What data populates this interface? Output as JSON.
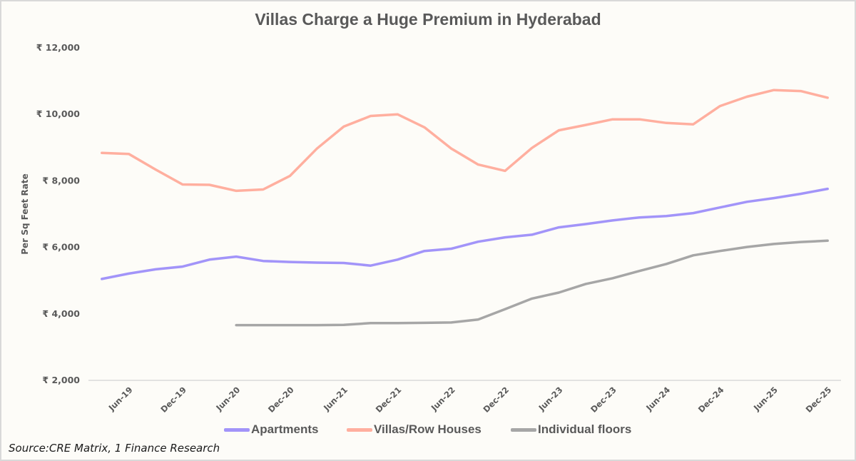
{
  "chart_data": {
    "type": "line",
    "title": "Villas Charge a Huge Premium in Hyderabad",
    "xlabel": "",
    "ylabel": "Per Sq Feet Rate",
    "ylim": [
      2000,
      12000
    ],
    "y_ticks": [
      2000,
      4000,
      6000,
      8000,
      10000,
      12000
    ],
    "y_tick_labels": [
      "₹ 2,000",
      "₹ 4,000",
      "₹ 6,000",
      "₹ 8,000",
      "₹ 10,000",
      "₹ 12,000"
    ],
    "grid": false,
    "legend_position": "bottom",
    "x": [
      "Mar-19",
      "Jun-19",
      "Sep-19",
      "Dec-19",
      "Mar-20",
      "Jun-20",
      "Sep-20",
      "Dec-20",
      "Mar-21",
      "Jun-21",
      "Sep-21",
      "Dec-21",
      "Mar-22",
      "Jun-22",
      "Sep-22",
      "Dec-22",
      "Mar-23",
      "Jun-23",
      "Sep-23",
      "Dec-23",
      "Mar-24",
      "Jun-24",
      "Sep-24",
      "Dec-24",
      "Mar-25",
      "Jun-25",
      "Sep-25",
      "Dec-25"
    ],
    "x_tick_labels": [
      "Jun-19",
      "Dec-19",
      "Jun-20",
      "Dec-20",
      "Jun-21",
      "Dec-21",
      "Jun-22",
      "Dec-22",
      "Jun-23",
      "Dec-23",
      "Jun-24",
      "Dec-24",
      "Jun-25",
      "Dec-25"
    ],
    "series": [
      {
        "name": "Apartments",
        "color": "#a294f9",
        "values": [
          5050,
          5210,
          5340,
          5420,
          5630,
          5720,
          5590,
          5560,
          5540,
          5530,
          5450,
          5630,
          5890,
          5960,
          6170,
          6300,
          6380,
          6600,
          6700,
          6810,
          6900,
          6940,
          7030,
          7200,
          7370,
          7480,
          7610,
          7760
        ]
      },
      {
        "name": "Villas/Row Houses",
        "color": "#ffaf9f",
        "values": [
          8840,
          8810,
          8340,
          7890,
          7880,
          7700,
          7740,
          8150,
          8970,
          9630,
          9950,
          10000,
          9610,
          8970,
          8490,
          8300,
          8990,
          9520,
          9680,
          9850,
          9850,
          9740,
          9700,
          10250,
          10530,
          10730,
          10700,
          10500
        ]
      },
      {
        "name": "Individual floors",
        "color": "#a6a6a6",
        "values": [
          null,
          null,
          null,
          null,
          null,
          3660,
          3660,
          3660,
          3660,
          3670,
          3720,
          3720,
          3730,
          3740,
          3830,
          4140,
          4460,
          4640,
          4900,
          5070,
          5290,
          5500,
          5760,
          5890,
          6010,
          6100,
          6160,
          6200
        ]
      }
    ],
    "source": "Source:CRE Matrix, 1 Finance Research"
  },
  "colors": {
    "axis": "#d9d9d9",
    "text": "#595959",
    "background": "#fdfcf8"
  }
}
